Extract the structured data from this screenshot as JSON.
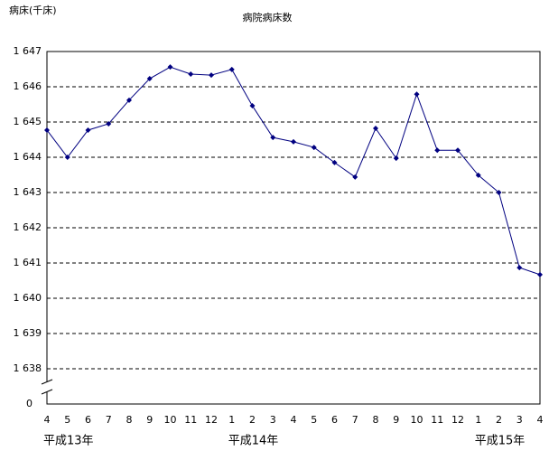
{
  "chart_data": {
    "type": "line",
    "title": "病院病床数",
    "y_label": "病床(千床)",
    "categories": [
      "4",
      "5",
      "6",
      "7",
      "8",
      "9",
      "10",
      "11",
      "12",
      "1",
      "2",
      "3",
      "4",
      "5",
      "6",
      "7",
      "8",
      "9",
      "10",
      "11",
      "12",
      "1",
      "2",
      "3",
      "4"
    ],
    "category_groups": [
      "平成13年",
      null,
      null,
      null,
      null,
      null,
      null,
      null,
      null,
      "平成14年",
      null,
      null,
      null,
      null,
      null,
      null,
      null,
      null,
      null,
      null,
      null,
      "平成15年",
      null,
      null,
      null
    ],
    "series": [
      {
        "color": "#000080",
        "values": [
          1644.77,
          1644.0,
          1644.77,
          1644.95,
          1645.62,
          1646.23,
          1646.56,
          1646.36,
          1646.33,
          1646.49,
          1645.46,
          1644.56,
          1644.44,
          1644.28,
          1643.85,
          1643.44,
          1644.82,
          1643.97,
          1645.79,
          1644.2,
          1644.2,
          1643.49,
          1643.0,
          1640.87,
          1640.67
        ]
      }
    ],
    "ylim": [
      1637,
      1647
    ],
    "yticks": [
      {
        "value": 1638,
        "label": "1 638"
      },
      {
        "value": 1639,
        "label": "1 639"
      },
      {
        "value": 1640,
        "label": "1 640"
      },
      {
        "value": 1641,
        "label": "1 641"
      },
      {
        "value": 1642,
        "label": "1 642"
      },
      {
        "value": 1643,
        "label": "1 643"
      },
      {
        "value": 1644,
        "label": "1 644"
      },
      {
        "value": 1645,
        "label": "1 645"
      },
      {
        "value": 1646,
        "label": "1 646"
      },
      {
        "value": 1647,
        "label": "1 647"
      }
    ],
    "y_break_tick": 0,
    "grid": true
  }
}
